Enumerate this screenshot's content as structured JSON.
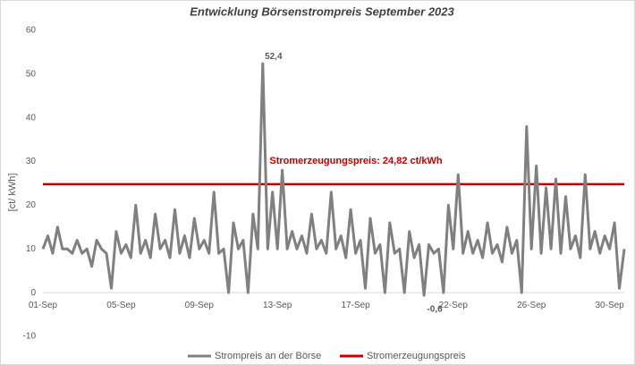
{
  "chart_data": {
    "type": "line",
    "title": "Entwicklung Börsenstrompreis September 2023",
    "y_label": "[ct/ kWh]",
    "categories": [
      "01-Sep",
      null,
      null,
      null,
      null,
      null,
      null,
      null,
      null,
      null,
      null,
      null,
      null,
      null,
      null,
      null,
      "05-Sep",
      null,
      null,
      null,
      null,
      null,
      null,
      null,
      null,
      null,
      null,
      null,
      null,
      null,
      null,
      null,
      "09-Sep",
      null,
      null,
      null,
      null,
      null,
      null,
      null,
      null,
      null,
      null,
      null,
      null,
      null,
      null,
      null,
      "13-Sep",
      null,
      null,
      null,
      null,
      null,
      null,
      null,
      null,
      null,
      null,
      null,
      null,
      null,
      null,
      null,
      "17-Sep",
      null,
      null,
      null,
      null,
      null,
      null,
      null,
      null,
      null,
      null,
      null,
      null,
      null,
      null,
      null,
      null,
      null,
      null,
      null,
      "22-Sep",
      null,
      null,
      null,
      null,
      null,
      null,
      null,
      null,
      null,
      null,
      null,
      null,
      null,
      null,
      null,
      "26-Sep",
      null,
      null,
      null,
      null,
      null,
      null,
      null,
      null,
      null,
      null,
      null,
      null,
      null,
      null,
      null,
      "30-Sep",
      null,
      null,
      null
    ],
    "series": [
      {
        "name": "Strompreis an der Börse",
        "color": "#808080",
        "values": [
          10,
          13,
          9,
          15,
          10,
          10,
          9,
          12,
          9,
          10,
          6,
          12,
          10,
          9,
          1,
          14,
          9,
          11,
          8,
          20,
          9,
          12,
          8,
          18,
          10,
          12,
          8,
          19,
          9,
          13,
          8,
          17,
          10,
          12,
          9,
          23,
          9,
          10,
          0,
          16,
          10,
          12,
          0,
          18,
          10,
          52.4,
          10,
          23,
          10,
          28,
          10,
          14,
          10,
          13,
          9,
          18,
          10,
          12,
          9,
          23,
          10,
          13,
          8,
          19,
          9,
          12,
          1,
          17,
          9,
          11,
          0,
          16,
          9,
          10,
          0,
          14,
          8,
          11,
          -0.6,
          11,
          9,
          10,
          0,
          20,
          10,
          27,
          9,
          14,
          9,
          12,
          8,
          16,
          9,
          11,
          7,
          15,
          9,
          12,
          0,
          38,
          10,
          29,
          9,
          24,
          10,
          26,
          9,
          22,
          10,
          13,
          8,
          27,
          10,
          14,
          9,
          13,
          10,
          16,
          1,
          10
        ],
        "value_labels": [
          null,
          null,
          null,
          null,
          null,
          null,
          null,
          null,
          null,
          null,
          null,
          null,
          null,
          null,
          null,
          null,
          null,
          null,
          null,
          null,
          null,
          null,
          null,
          null,
          null,
          null,
          null,
          null,
          null,
          null,
          null,
          null,
          null,
          null,
          null,
          null,
          null,
          null,
          null,
          null,
          null,
          null,
          null,
          null,
          null,
          "52,4",
          null,
          null,
          null,
          null,
          null,
          null,
          null,
          null,
          null,
          null,
          null,
          null,
          null,
          null,
          null,
          null,
          null,
          null,
          null,
          null,
          null,
          null,
          null,
          null,
          null,
          null,
          null,
          null,
          null,
          null,
          null,
          null,
          "-0,6",
          null,
          null,
          null,
          null,
          null,
          null,
          null,
          null,
          null,
          null,
          null,
          null,
          null,
          null,
          null,
          null,
          null,
          null,
          null,
          null,
          null,
          null,
          null,
          null,
          null,
          null,
          null,
          null,
          null,
          null,
          null,
          null,
          null,
          null,
          null,
          null,
          null,
          null,
          null,
          null,
          null
        ]
      }
    ],
    "reference_line": {
      "name": "Stromerzeugungspreis",
      "color": "#c00000",
      "value": 24.82,
      "label": "Stromerzeugungspreis: 24,82 ct/kWh"
    },
    "ylim": [
      -10,
      60
    ],
    "yticks": [
      -10,
      0,
      10,
      20,
      30,
      40,
      50,
      60
    ],
    "grid": false,
    "legend": "bottom"
  }
}
